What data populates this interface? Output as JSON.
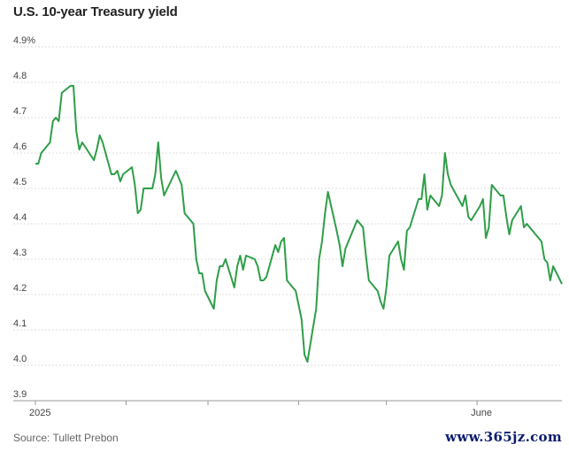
{
  "chart_data": {
    "type": "line",
    "title": "U.S. 10-year Treasury yield",
    "source": "Source: Tullett Prebon",
    "xlabel": "",
    "ylabel": "",
    "ylim": [
      3.9,
      4.9
    ],
    "y_ticks": [
      "4.9%",
      "4.8",
      "4.7",
      "4.6",
      "4.5",
      "4.4",
      "4.3",
      "4.2",
      "4.1",
      "4.0",
      "3.9"
    ],
    "x_tick_labels": [
      {
        "label": "2025",
        "date": "2025-01-01"
      },
      {
        "label": "",
        "date": "2025-02-01"
      },
      {
        "label": "",
        "date": "2025-03-01"
      },
      {
        "label": "",
        "date": "2025-04-01"
      },
      {
        "label": "",
        "date": "2025-05-01"
      },
      {
        "label": "June",
        "date": "2025-06-01"
      }
    ],
    "xlim": [
      "2025-01-01",
      "2025-06-30"
    ],
    "grid": true,
    "line_color": "#2e9e48",
    "series": [
      {
        "name": "",
        "x": [
          "2025-01-01",
          "2025-01-02",
          "2025-01-03",
          "2025-01-06",
          "2025-01-07",
          "2025-01-08",
          "2025-01-09",
          "2025-01-10",
          "2025-01-13",
          "2025-01-14",
          "2025-01-15",
          "2025-01-16",
          "2025-01-17",
          "2025-01-21",
          "2025-01-22",
          "2025-01-23",
          "2025-01-24",
          "2025-01-27",
          "2025-01-28",
          "2025-01-29",
          "2025-01-30",
          "2025-01-31",
          "2025-02-03",
          "2025-02-04",
          "2025-02-05",
          "2025-02-06",
          "2025-02-07",
          "2025-02-10",
          "2025-02-11",
          "2025-02-12",
          "2025-02-13",
          "2025-02-14",
          "2025-02-18",
          "2025-02-19",
          "2025-02-20",
          "2025-02-21",
          "2025-02-24",
          "2025-02-25",
          "2025-02-26",
          "2025-02-27",
          "2025-02-28",
          "2025-03-03",
          "2025-03-04",
          "2025-03-05",
          "2025-03-06",
          "2025-03-07",
          "2025-03-10",
          "2025-03-11",
          "2025-03-12",
          "2025-03-13",
          "2025-03-14",
          "2025-03-17",
          "2025-03-18",
          "2025-03-19",
          "2025-03-20",
          "2025-03-21",
          "2025-03-24",
          "2025-03-25",
          "2025-03-26",
          "2025-03-27",
          "2025-03-28",
          "2025-03-31",
          "2025-04-01",
          "2025-04-02",
          "2025-04-03",
          "2025-04-04",
          "2025-04-07",
          "2025-04-08",
          "2025-04-09",
          "2025-04-10",
          "2025-04-11",
          "2025-04-14",
          "2025-04-15",
          "2025-04-16",
          "2025-04-17",
          "2025-04-21",
          "2025-04-22",
          "2025-04-23",
          "2025-04-24",
          "2025-04-25",
          "2025-04-28",
          "2025-04-29",
          "2025-04-30",
          "2025-05-01",
          "2025-05-02",
          "2025-05-05",
          "2025-05-06",
          "2025-05-07",
          "2025-05-08",
          "2025-05-09",
          "2025-05-12",
          "2025-05-13",
          "2025-05-14",
          "2025-05-15",
          "2025-05-16",
          "2025-05-19",
          "2025-05-20",
          "2025-05-21",
          "2025-05-22",
          "2025-05-23",
          "2025-05-27",
          "2025-05-28",
          "2025-05-29",
          "2025-05-30",
          "2025-06-02",
          "2025-06-03",
          "2025-06-04",
          "2025-06-05",
          "2025-06-06",
          "2025-06-09",
          "2025-06-10",
          "2025-06-11",
          "2025-06-12",
          "2025-06-13",
          "2025-06-16",
          "2025-06-17",
          "2025-06-18",
          "2025-06-20",
          "2025-06-23",
          "2025-06-24",
          "2025-06-25",
          "2025-06-26",
          "2025-06-27",
          "2025-06-30"
        ],
        "values": [
          4.57,
          4.57,
          4.6,
          4.63,
          4.69,
          4.7,
          4.69,
          4.77,
          4.79,
          4.79,
          4.66,
          4.61,
          4.63,
          4.58,
          4.61,
          4.65,
          4.63,
          4.54,
          4.54,
          4.55,
          4.52,
          4.54,
          4.56,
          4.51,
          4.43,
          4.44,
          4.5,
          4.5,
          4.54,
          4.63,
          4.53,
          4.48,
          4.55,
          4.53,
          4.51,
          4.43,
          4.4,
          4.3,
          4.26,
          4.26,
          4.21,
          4.16,
          4.24,
          4.28,
          4.28,
          4.3,
          4.22,
          4.28,
          4.31,
          4.27,
          4.31,
          4.3,
          4.28,
          4.24,
          4.24,
          4.25,
          4.34,
          4.32,
          4.35,
          4.36,
          4.24,
          4.21,
          4.17,
          4.13,
          4.03,
          4.01,
          4.16,
          4.3,
          4.35,
          4.43,
          4.49,
          4.38,
          4.34,
          4.28,
          4.33,
          4.41,
          4.4,
          4.39,
          4.31,
          4.24,
          4.21,
          4.18,
          4.16,
          4.22,
          4.31,
          4.35,
          4.3,
          4.27,
          4.38,
          4.39,
          4.47,
          4.47,
          4.54,
          4.44,
          4.48,
          4.45,
          4.48,
          4.6,
          4.54,
          4.51,
          4.45,
          4.48,
          4.42,
          4.41,
          4.45,
          4.47,
          4.36,
          4.39,
          4.51,
          4.48,
          4.48,
          4.42,
          4.37,
          4.41,
          4.45,
          4.39,
          4.4,
          4.38,
          4.35,
          4.3,
          4.29,
          4.24,
          4.28,
          4.23
        ]
      }
    ]
  }
}
